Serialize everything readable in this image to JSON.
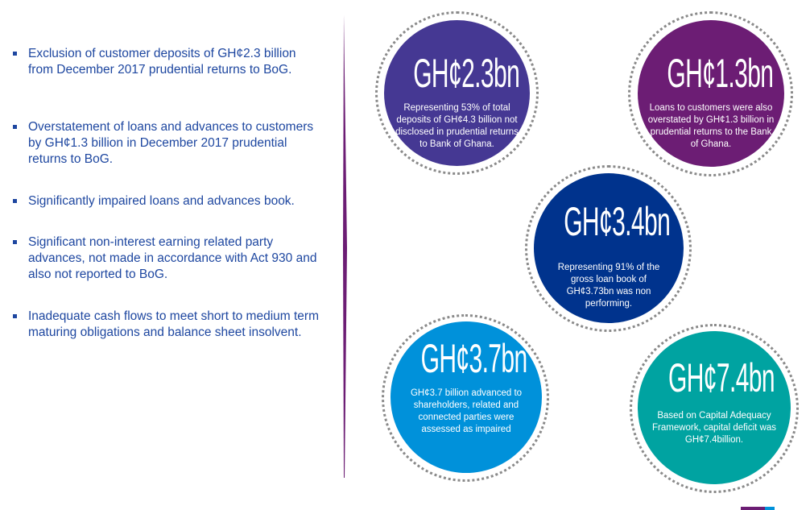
{
  "bullets": [
    "Exclusion of customer deposits of GH¢2.3 billion from December 2017 prudential returns to BoG.",
    "Overstatement of loans and advances to customers by GH¢1.3 billion in December 2017 prudential returns to BoG.",
    "Significantly impaired loans and advances book.",
    "Significant non-interest earning related party advances, not made in accordance with Act 930 and also not reported to BoG.",
    "Inadequate cash flows to meet short to medium term maturing obligations and balance sheet insolvent."
  ],
  "circles": [
    {
      "amount": "GH¢2.3bn",
      "text": "Representing 53% of total deposits of GH¢4.3 billion not disclosed in prudential returns to Bank of Ghana.",
      "color": "#453893"
    },
    {
      "amount": "GH¢1.3bn",
      "text": "Loans to customers were also overstated by GH¢1.3 billion in prudential returns to the Bank of Ghana.",
      "color": "#6c1d74"
    },
    {
      "amount": "GH¢3.4bn",
      "text": "Representing 91% of the gross loan book of GH¢3.73bn was non performing.",
      "color": "#00338d"
    },
    {
      "amount": "GH¢3.7bn",
      "text": "GH¢3.7 billion advanced to shareholders, related and connected parties were assessed as impaired",
      "color": "#0091da"
    },
    {
      "amount": "GH¢7.4bn",
      "text": "Based on Capital Adequacy Framework, capital deficit was GH¢7.4billion.",
      "color": "#00a3a1"
    }
  ],
  "colors": {
    "text": "#1e47a0",
    "divider": "#6c1d74"
  }
}
